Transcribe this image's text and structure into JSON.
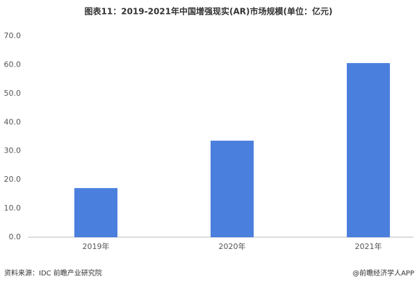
{
  "chart_data": {
    "type": "bar",
    "title": "图表11：2019-2021年中国增强现实(AR)市场规模(单位：亿元)",
    "categories": [
      "2019年",
      "2020年",
      "2021年"
    ],
    "values": [
      17.1,
      33.6,
      60.6
    ],
    "color": "#4a7fdd",
    "ylim": [
      0,
      70
    ],
    "yticks": [
      {
        "value": 0,
        "label": "0.0"
      },
      {
        "value": 10,
        "label": "10.0"
      },
      {
        "value": 20,
        "label": "20.0"
      },
      {
        "value": 30,
        "label": "30.0"
      },
      {
        "value": 40,
        "label": "40.0"
      },
      {
        "value": 50,
        "label": "50.0"
      },
      {
        "value": 60,
        "label": "60.0"
      },
      {
        "value": 70,
        "label": "70.0"
      }
    ],
    "grid": false,
    "source": "资料来源：IDC 前瞻产业研究院",
    "credit": "@前瞻经济学人APP"
  }
}
